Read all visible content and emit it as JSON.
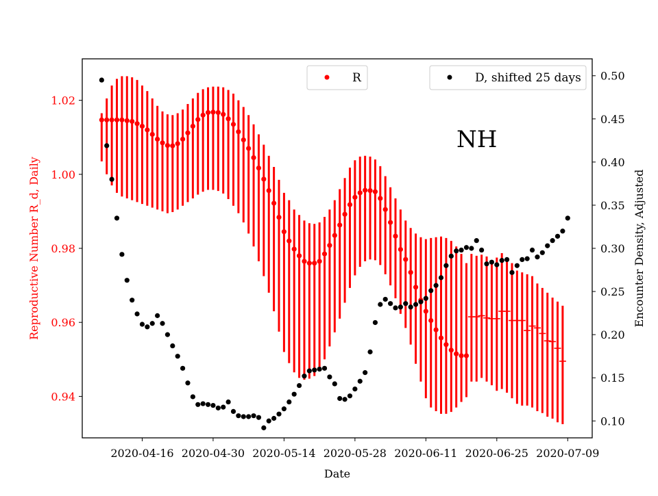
{
  "chart_data": {
    "type": "scatter",
    "xlabel": "Date",
    "ylabel_left": "Reproductive Number R_d, Daily",
    "ylabel_right": "Encounter Density, Adjusted",
    "annotation": "NH",
    "x_tick_labels": [
      "2020-04-16",
      "2020-04-30",
      "2020-05-14",
      "2020-05-28",
      "2020-06-11",
      "2020-06-25",
      "2020-07-09"
    ],
    "x_tick_dates": [
      "2020-04-16",
      "2020-04-30",
      "2020-05-14",
      "2020-05-28",
      "2020-06-11",
      "2020-06-25",
      "2020-07-09"
    ],
    "y_left_ticks": [
      0.94,
      0.96,
      0.98,
      1.0,
      1.02
    ],
    "y_left_tick_labels": [
      "0.94",
      "0.96",
      "0.98",
      "1.00",
      "1.02"
    ],
    "y_right_ticks": [
      0.1,
      0.15,
      0.2,
      0.25,
      0.3,
      0.35,
      0.4,
      0.45,
      0.5
    ],
    "y_right_tick_labels": [
      "0.10",
      "0.15",
      "0.20",
      "0.25",
      "0.30",
      "0.35",
      "0.40",
      "0.45",
      "0.50"
    ],
    "ylim_left": [
      0.9288,
      1.0312
    ],
    "ylim_right": [
      0.0804,
      0.5196
    ],
    "xlim": [
      "2020-04-04T04:00",
      "2020-07-13T20:00"
    ],
    "legend": [
      {
        "label": "R",
        "color": "#ff0000",
        "position": "upper-center"
      },
      {
        "label": "D, shifted 25 days",
        "color": "#000000",
        "position": "upper-right"
      }
    ],
    "colors": {
      "r_series": "#ff0000",
      "d_series": "#000000",
      "left_axis_text": "#ff0000"
    },
    "series": [
      {
        "name": "R",
        "axis": "left",
        "color": "#ff0000",
        "start_date": "2020-04-08",
        "values": [
          1.0147,
          1.0147,
          1.0147,
          1.0147,
          1.0147,
          1.0145,
          1.0143,
          1.0137,
          1.013,
          1.012,
          1.0108,
          1.0095,
          1.0085,
          1.0078,
          1.0077,
          1.0083,
          1.0095,
          1.0112,
          1.013,
          1.0148,
          1.016,
          1.0167,
          1.0168,
          1.0167,
          1.0162,
          1.015,
          1.0135,
          1.0115,
          1.0093,
          1.007,
          1.0045,
          1.0017,
          0.9987,
          0.9956,
          0.9922,
          0.9884,
          0.9845,
          0.982,
          0.9798,
          0.978,
          0.9765,
          0.976,
          0.976,
          0.9765,
          0.9785,
          0.9808,
          0.9835,
          0.9863,
          0.9892,
          0.9918,
          0.9938,
          0.995,
          0.9957,
          0.9956,
          0.9953,
          0.9935,
          0.9905,
          0.987,
          0.9833,
          0.9797,
          0.977,
          0.9735,
          0.9695,
          0.966,
          0.963,
          0.9605,
          0.958,
          0.9558,
          0.954,
          0.9525,
          0.9515,
          0.951,
          0.951
        ],
        "lower": [
          1.0035,
          1.0,
          0.997,
          0.995,
          0.994,
          0.9935,
          0.993,
          0.9925,
          0.992,
          0.9915,
          0.991,
          0.9905,
          0.99,
          0.9895,
          0.9898,
          0.9905,
          0.9915,
          0.9925,
          0.9935,
          0.9945,
          0.9953,
          0.9958,
          0.9958,
          0.9955,
          0.9948,
          0.9933,
          0.9915,
          0.9895,
          0.987,
          0.984,
          0.9805,
          0.9765,
          0.9725,
          0.968,
          0.963,
          0.9575,
          0.952,
          0.949,
          0.9465,
          0.945,
          0.9445,
          0.9448,
          0.9455,
          0.947,
          0.95,
          0.9535,
          0.9573,
          0.961,
          0.9653,
          0.9693,
          0.9727,
          0.975,
          0.9765,
          0.977,
          0.9768,
          0.9755,
          0.973,
          0.97,
          0.9665,
          0.9623,
          0.9585,
          0.954,
          0.9488,
          0.944,
          0.9395,
          0.937,
          0.936,
          0.9353,
          0.9353,
          0.9358,
          0.937,
          0.9385,
          0.9398
        ],
        "upper": [
          1.0165,
          1.0205,
          1.024,
          1.0258,
          1.0265,
          1.0265,
          1.0262,
          1.0255,
          1.024,
          1.0225,
          1.0205,
          1.0185,
          1.017,
          1.0162,
          1.016,
          1.0165,
          1.0175,
          1.019,
          1.0205,
          1.022,
          1.023,
          1.0235,
          1.0237,
          1.0237,
          1.0235,
          1.0228,
          1.0218,
          1.02,
          1.0182,
          1.016,
          1.0135,
          1.0108,
          1.008,
          1.005,
          1.002,
          0.9985,
          0.995,
          0.993,
          0.9905,
          0.989,
          0.9875,
          0.9868,
          0.9866,
          0.987,
          0.9885,
          0.9905,
          0.993,
          0.996,
          0.999,
          1.0018,
          1.0038,
          1.0048,
          1.005,
          1.0048,
          1.004,
          1.0022,
          0.9995,
          0.9965,
          0.9935,
          0.9905,
          0.9875,
          0.9855,
          0.984,
          0.983,
          0.9825,
          0.9828,
          0.983,
          0.9832,
          0.9828,
          0.982,
          0.9805,
          0.9785,
          0.976
        ]
      },
      {
        "name": "R",
        "axis": "left",
        "color": "#ff0000",
        "marker": "hline",
        "start_date": "2020-06-20",
        "values": [
          0.9615,
          0.9615,
          0.9618,
          0.9612,
          0.961,
          0.961,
          0.963,
          0.963,
          0.9605,
          0.9605,
          0.9605,
          0.9578,
          0.959,
          0.9585,
          0.957,
          0.955,
          0.9548,
          0.953,
          0.9495
        ],
        "lower": [
          0.944,
          0.944,
          0.945,
          0.944,
          0.943,
          0.9415,
          0.942,
          0.941,
          0.9395,
          0.938,
          0.9375,
          0.9375,
          0.937,
          0.936,
          0.9355,
          0.9345,
          0.934,
          0.933,
          0.9325
        ],
        "upper": [
          0.9785,
          0.978,
          0.9783,
          0.9778,
          0.976,
          0.9775,
          0.9787,
          0.977,
          0.976,
          0.974,
          0.9735,
          0.973,
          0.9725,
          0.9705,
          0.9693,
          0.968,
          0.9667,
          0.9656,
          0.9645
        ]
      },
      {
        "name": "D, shifted 25 days",
        "axis": "right",
        "color": "#000000",
        "start_date": "2020-04-08",
        "values": [
          0.495,
          0.419,
          0.38,
          0.335,
          0.293,
          0.263,
          0.24,
          0.224,
          0.212,
          0.209,
          0.213,
          0.222,
          0.213,
          0.2,
          0.187,
          0.175,
          0.161,
          0.144,
          0.128,
          0.119,
          0.12,
          0.119,
          0.118,
          0.115,
          0.116,
          0.122,
          0.111,
          0.106,
          0.105,
          0.105,
          0.106,
          0.104,
          0.092,
          0.1,
          0.103,
          0.108,
          0.114,
          0.122,
          0.131,
          0.141,
          0.152,
          0.158,
          0.159,
          0.16,
          0.161,
          0.151,
          0.143,
          0.126,
          0.125,
          0.129,
          0.137,
          0.146,
          0.156,
          0.18,
          0.214,
          0.235,
          0.241,
          0.236,
          0.231,
          0.232,
          0.236,
          0.232,
          0.235,
          0.238,
          0.242,
          0.251,
          0.257,
          0.266,
          0.28,
          0.291,
          0.297,
          0.298,
          0.301,
          0.3,
          0.309,
          0.298,
          0.282,
          0.284,
          0.281,
          0.286,
          0.287,
          0.272,
          0.28,
          0.287,
          0.288,
          0.298,
          0.29,
          0.295,
          0.303,
          0.309,
          0.314,
          0.32,
          0.335
        ]
      }
    ]
  }
}
